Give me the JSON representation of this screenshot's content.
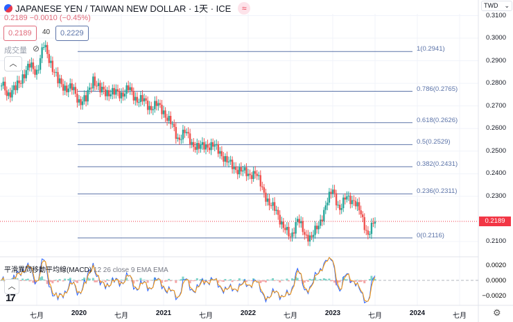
{
  "header": {
    "symbol_title": "JAPANESE YEN / TAIWAN NEW DOLLAR · 1天 · ICE",
    "last": "0.2189",
    "change": "−0.0010",
    "change_pct": "(−0.45%)",
    "bid": "0.2189",
    "spread": "40",
    "ask": "0.2229",
    "volume_label": "成交量",
    "currency": "TWD",
    "compare_icon": "≈"
  },
  "macd": {
    "name": "平滑異同移動平均線(MACD)",
    "params": "12 26 close 9 EMA EMA",
    "axis": [
      "0.0020",
      "0.0000",
      "−0.0020"
    ]
  },
  "colors": {
    "up": "#26a69a",
    "down": "#ef5350",
    "fib": "#5b73a8",
    "macd": "#2962ff",
    "signal": "#ff9800",
    "price_tag": "#f23645"
  },
  "chart_data": {
    "type": "candlestick",
    "y_axis_ticks": [
      "0.3100",
      "0.3000",
      "0.2900",
      "0.2800",
      "0.2700",
      "0.2600",
      "0.2500",
      "0.2400",
      "0.2300",
      "0.2100"
    ],
    "ylim": [
      0.207,
      0.312
    ],
    "x_axis_ticks": [
      {
        "label": "七月",
        "date": "2019-07"
      },
      {
        "label": "2020",
        "date": "2020-01",
        "year": true
      },
      {
        "label": "七月",
        "date": "2020-07"
      },
      {
        "label": "2021",
        "date": "2021-01",
        "year": true
      },
      {
        "label": "七月",
        "date": "2021-07"
      },
      {
        "label": "2022",
        "date": "2022-01",
        "year": true
      },
      {
        "label": "七月",
        "date": "2022-07"
      },
      {
        "label": "2023",
        "date": "2023-01",
        "year": true
      },
      {
        "label": "七月",
        "date": "2023-07"
      },
      {
        "label": "2024",
        "date": "2024-01",
        "year": true
      },
      {
        "label": "七月",
        "date": "2024-07"
      }
    ],
    "current_price": "0.2189",
    "fibonacci": [
      {
        "label": "1(0.2941)",
        "value": 0.2941
      },
      {
        "label": "0.786(0.2765)",
        "value": 0.2765
      },
      {
        "label": "0.618(0.2626)",
        "value": 0.2626
      },
      {
        "label": "0.5(0.2529)",
        "value": 0.2529
      },
      {
        "label": "0.382(0.2431)",
        "value": 0.2431
      },
      {
        "label": "0.236(0.2311)",
        "value": 0.2311
      },
      {
        "label": "0(0.2116)",
        "value": 0.2116
      }
    ],
    "closes": [
      [
        "2019-02",
        0.279
      ],
      [
        "2019-03",
        0.276
      ],
      [
        "2019-04",
        0.277
      ],
      [
        "2019-05",
        0.284
      ],
      [
        "2019-06",
        0.287
      ],
      [
        "2019-07",
        0.286
      ],
      [
        "2019-08",
        0.296
      ],
      [
        "2019-09",
        0.29
      ],
      [
        "2019-10",
        0.28
      ],
      [
        "2019-11",
        0.279
      ],
      [
        "2019-12",
        0.277
      ],
      [
        "2020-01",
        0.273
      ],
      [
        "2020-02",
        0.272
      ],
      [
        "2020-03",
        0.283
      ],
      [
        "2020-04",
        0.276
      ],
      [
        "2020-05",
        0.277
      ],
      [
        "2020-06",
        0.275
      ],
      [
        "2020-07",
        0.276
      ],
      [
        "2020-08",
        0.277
      ],
      [
        "2020-09",
        0.274
      ],
      [
        "2020-10",
        0.272
      ],
      [
        "2020-11",
        0.27
      ],
      [
        "2020-12",
        0.27
      ],
      [
        "2021-01",
        0.268
      ],
      [
        "2021-02",
        0.262
      ],
      [
        "2021-03",
        0.256
      ],
      [
        "2021-04",
        0.258
      ],
      [
        "2021-05",
        0.254
      ],
      [
        "2021-06",
        0.251
      ],
      [
        "2021-07",
        0.253
      ],
      [
        "2021-08",
        0.252
      ],
      [
        "2021-09",
        0.25
      ],
      [
        "2021-10",
        0.245
      ],
      [
        "2021-11",
        0.243
      ],
      [
        "2021-12",
        0.241
      ],
      [
        "2022-01",
        0.24
      ],
      [
        "2022-02",
        0.24
      ],
      [
        "2022-03",
        0.234
      ],
      [
        "2022-04",
        0.226
      ],
      [
        "2022-05",
        0.224
      ],
      [
        "2022-06",
        0.216
      ],
      [
        "2022-07",
        0.212
      ],
      [
        "2022-08",
        0.22
      ],
      [
        "2022-09",
        0.213
      ],
      [
        "2022-10",
        0.212
      ],
      [
        "2022-11",
        0.217
      ],
      [
        "2022-12",
        0.226
      ],
      [
        "2023-01",
        0.233
      ],
      [
        "2023-02",
        0.224
      ],
      [
        "2023-03",
        0.23
      ],
      [
        "2023-04",
        0.228
      ],
      [
        "2023-05",
        0.222
      ],
      [
        "2023-06",
        0.213
      ],
      [
        "2023-07",
        0.2189
      ]
    ]
  }
}
